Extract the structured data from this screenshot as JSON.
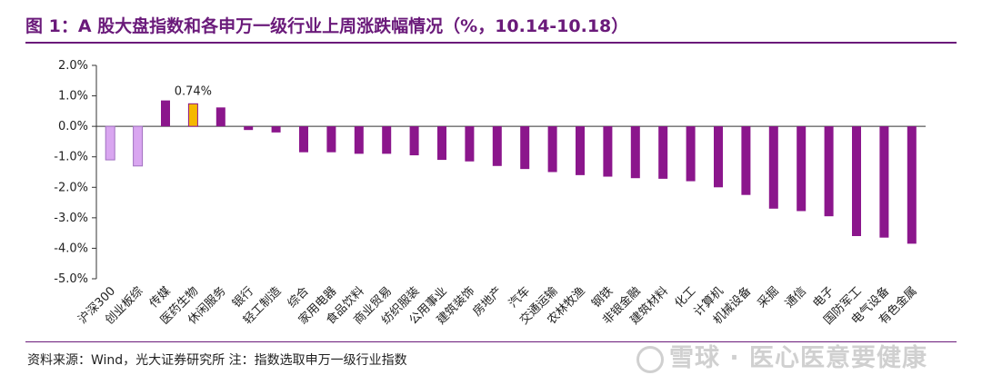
{
  "header": {
    "title": "图 1：A 股大盘指数和各申万一级行业上周涨跌幅情况（%，10.14-10.18）"
  },
  "footer": {
    "source": "资料来源：Wind，光大证券研究所    注：指数选取申万一级行业指数",
    "watermark": "雪球 · 医心医意要健康"
  },
  "colors": {
    "index_fill": "#d9a6f0",
    "index_border": "#a070c0",
    "industry": "#8b168c",
    "highlight": "#f5b800",
    "highlight_border": "#8b168c",
    "title": "#6a1a7a"
  },
  "chart_data": {
    "type": "bar",
    "title": "",
    "xlabel": "",
    "ylabel": "",
    "ylim": [
      -5.0,
      2.0
    ],
    "yticks": [
      "2.0%",
      "1.0%",
      "0.0%",
      "-1.0%",
      "-2.0%",
      "-3.0%",
      "-4.0%",
      "-5.0%"
    ],
    "grid": false,
    "categories": [
      "沪深300",
      "创业板综",
      "传媒",
      "医药生物",
      "休闲服务",
      "银行",
      "轻工制造",
      "综合",
      "家用电器",
      "食品饮料",
      "商业贸易",
      "纺织服装",
      "公用事业",
      "建筑装饰",
      "房地产",
      "汽车",
      "交通运输",
      "农林牧渔",
      "钢铁",
      "非银金融",
      "建筑材料",
      "化工",
      "计算机",
      "机械设备",
      "采掘",
      "通信",
      "电子",
      "国防军工",
      "电气设备",
      "有色金属"
    ],
    "values": [
      -1.1,
      -1.3,
      0.85,
      0.74,
      0.62,
      -0.12,
      -0.2,
      -0.85,
      -0.85,
      -0.9,
      -0.9,
      -0.95,
      -1.1,
      -1.15,
      -1.3,
      -1.4,
      -1.5,
      -1.6,
      -1.65,
      -1.7,
      -1.72,
      -1.8,
      -2.0,
      -2.25,
      -2.7,
      -2.78,
      -2.95,
      -3.6,
      -3.65,
      -3.85
    ],
    "bar_styles": [
      "index",
      "index",
      "industry",
      "highlight",
      "industry",
      "industry",
      "industry",
      "industry",
      "industry",
      "industry",
      "industry",
      "industry",
      "industry",
      "industry",
      "industry",
      "industry",
      "industry",
      "industry",
      "industry",
      "industry",
      "industry",
      "industry",
      "industry",
      "industry",
      "industry",
      "industry",
      "industry",
      "industry",
      "industry",
      "industry"
    ],
    "data_labels": [
      {
        "category": "医药生物",
        "text": "0.74%"
      }
    ]
  }
}
